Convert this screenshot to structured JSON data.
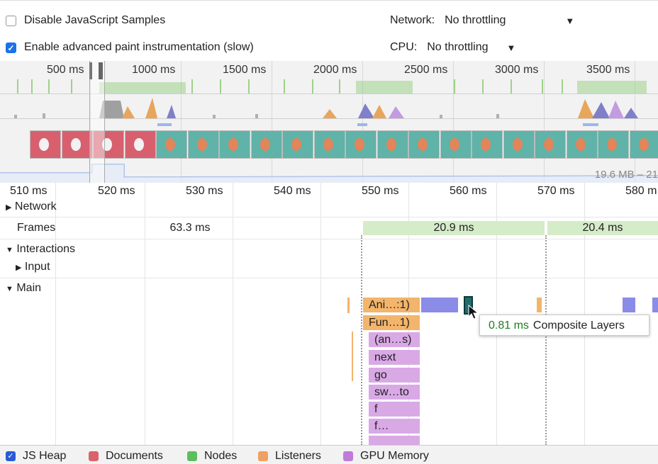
{
  "settings": {
    "disable_js_samples": {
      "label": "Disable JavaScript Samples",
      "checked": false
    },
    "advanced_paint": {
      "label": "Enable advanced paint instrumentation (slow)",
      "checked": true
    },
    "network": {
      "label": "Network:",
      "value": "No throttling"
    },
    "cpu": {
      "label": "CPU:",
      "value": "No throttling"
    }
  },
  "overview": {
    "ticks": [
      "500 ms",
      "1000 ms",
      "1500 ms",
      "2000 ms",
      "2500 ms",
      "3000 ms",
      "3500 ms"
    ],
    "memory_label": "19.6 MB – 21"
  },
  "ruler": {
    "ticks": [
      "510 ms",
      "520 ms",
      "530 ms",
      "540 ms",
      "550 ms",
      "560 ms",
      "570 ms",
      "580 m"
    ]
  },
  "tracks": {
    "network": "Network",
    "frames": "Frames",
    "interactions": "Interactions",
    "input": "Input",
    "main": "Main"
  },
  "frames": [
    "63.3 ms",
    "20.9 ms",
    "20.4 ms"
  ],
  "flame": [
    "Ani…:1)",
    "Fun…1)",
    "(an…s)",
    "next",
    "go",
    "sw…to",
    "f",
    "f…"
  ],
  "tooltip": {
    "duration": "0.81 ms",
    "name": "Composite Layers"
  },
  "legend": [
    {
      "label": "JS Heap",
      "color": "#2a5bd7",
      "checked": true
    },
    {
      "label": "Documents",
      "color": "#d9636a"
    },
    {
      "label": "Nodes",
      "color": "#5cbf5c"
    },
    {
      "label": "Listeners",
      "color": "#f0a060"
    },
    {
      "label": "GPU Memory",
      "color": "#c07ad9"
    }
  ],
  "colors": {
    "frame_bar": "#d5ecc8",
    "task_orange": "#f3b46b",
    "task_purple": "#d9a9e6",
    "task_blue": "#8b8be8",
    "tooltip_ms": "#1e7d22"
  }
}
